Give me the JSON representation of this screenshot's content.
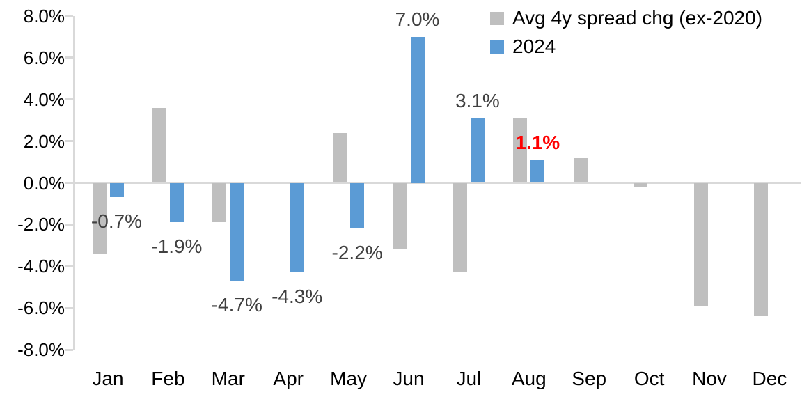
{
  "chart_data": {
    "type": "bar",
    "title": "",
    "xlabel": "",
    "ylabel": "",
    "categories": [
      "Jan",
      "Feb",
      "Mar",
      "Apr",
      "May",
      "Jun",
      "Jul",
      "Aug",
      "Sep",
      "Oct",
      "Nov",
      "Dec"
    ],
    "series": [
      {
        "name": "Avg 4y spread chg (ex-2020)",
        "color": "#BFBFBF",
        "values": [
          -3.4,
          3.6,
          -1.9,
          0.0,
          2.4,
          -3.2,
          -4.3,
          3.1,
          1.2,
          -0.2,
          -5.9,
          -6.4
        ]
      },
      {
        "name": "2024",
        "color": "#5B9BD5",
        "values": [
          -0.7,
          -1.9,
          -4.7,
          -4.3,
          -2.2,
          7.0,
          3.1,
          1.1,
          null,
          null,
          null,
          null
        ]
      }
    ],
    "ylim": [
      -8,
      8
    ],
    "ytick_step": 2,
    "ytick_labels": [
      "8.0%",
      "6.0%",
      "4.0%",
      "2.0%",
      "0.0%",
      "-2.0%",
      "-4.0%",
      "-6.0%",
      "-8.0%"
    ],
    "grid": false,
    "legend_position": "top-right",
    "axis_color": "#D9D9D9",
    "label_color": "#404040",
    "highlight_color": "#FF0000",
    "data_labels": [
      {
        "category": "Jan",
        "series": "2024",
        "text": "-0.7%",
        "color": "#404040",
        "bold": false,
        "placement": "below"
      },
      {
        "category": "Feb",
        "series": "2024",
        "text": "-1.9%",
        "color": "#404040",
        "bold": false,
        "placement": "below"
      },
      {
        "category": "Mar",
        "series": "2024",
        "text": "-4.7%",
        "color": "#404040",
        "bold": false,
        "placement": "below"
      },
      {
        "category": "Apr",
        "series": "2024",
        "text": "-4.3%",
        "color": "#404040",
        "bold": false,
        "placement": "below"
      },
      {
        "category": "May",
        "series": "2024",
        "text": "-2.2%",
        "color": "#404040",
        "bold": false,
        "placement": "below"
      },
      {
        "category": "Jun",
        "series": "2024",
        "text": "7.0%",
        "color": "#404040",
        "bold": false,
        "placement": "above"
      },
      {
        "category": "Jul",
        "series": "2024",
        "text": "3.1%",
        "color": "#404040",
        "bold": false,
        "placement": "above"
      },
      {
        "category": "Aug",
        "series": "2024",
        "text": "1.1%",
        "color": "#FF0000",
        "bold": true,
        "placement": "above"
      }
    ]
  }
}
